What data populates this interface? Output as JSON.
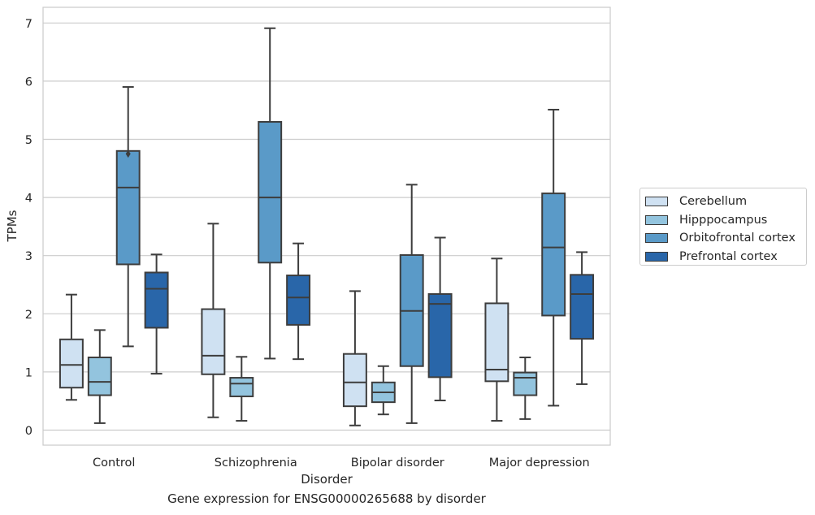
{
  "chart_data": {
    "type": "box",
    "title": "",
    "caption": "Gene expression for ENSG00000265688 by disorder",
    "xlabel": "Disorder",
    "ylabel": "TPMs",
    "ylim": [
      -0.25,
      7.3
    ],
    "yticks": [
      0,
      1,
      2,
      3,
      4,
      5,
      6,
      7
    ],
    "grid": true,
    "legend_position": "right",
    "categories": [
      "Control",
      "Schizophrenia",
      "Bipolar disorder",
      "Major depression"
    ],
    "series": [
      {
        "name": "Cerebellum",
        "color": "#cfe1f2",
        "boxes": [
          {
            "whislo": 0.52,
            "q1": 0.73,
            "med": 1.12,
            "q3": 1.56,
            "whishi": 2.33,
            "fliers": []
          },
          {
            "whislo": 0.22,
            "q1": 0.96,
            "med": 1.28,
            "q3": 2.08,
            "whishi": 3.55,
            "fliers": []
          },
          {
            "whislo": 0.08,
            "q1": 0.41,
            "med": 0.82,
            "q3": 1.31,
            "whishi": 2.39,
            "fliers": []
          },
          {
            "whislo": 0.16,
            "q1": 0.84,
            "med": 1.04,
            "q3": 2.18,
            "whishi": 2.95,
            "fliers": []
          }
        ]
      },
      {
        "name": "Hipppocampus",
        "color": "#93c4de",
        "boxes": [
          {
            "whislo": 0.12,
            "q1": 0.6,
            "med": 0.83,
            "q3": 1.25,
            "whishi": 1.72,
            "fliers": []
          },
          {
            "whislo": 0.16,
            "q1": 0.58,
            "med": 0.8,
            "q3": 0.9,
            "whishi": 1.26,
            "fliers": []
          },
          {
            "whislo": 0.27,
            "q1": 0.48,
            "med": 0.65,
            "q3": 0.82,
            "whishi": 1.1,
            "fliers": []
          },
          {
            "whislo": 0.19,
            "q1": 0.6,
            "med": 0.9,
            "q3": 0.99,
            "whishi": 1.25,
            "fliers": []
          }
        ]
      },
      {
        "name": "Orbitofrontal cortex",
        "color": "#5a9ac8",
        "boxes": [
          {
            "whislo": 1.44,
            "q1": 2.85,
            "med": 4.17,
            "q3": 4.8,
            "whishi": 5.9,
            "fliers": [
              4.75
            ]
          },
          {
            "whislo": 1.23,
            "q1": 2.88,
            "med": 4.0,
            "q3": 5.3,
            "whishi": 6.91,
            "fliers": []
          },
          {
            "whislo": 0.12,
            "q1": 1.1,
            "med": 2.05,
            "q3": 3.01,
            "whishi": 4.22,
            "fliers": []
          },
          {
            "whislo": 0.42,
            "q1": 1.97,
            "med": 3.14,
            "q3": 4.07,
            "whishi": 5.51,
            "fliers": []
          }
        ]
      },
      {
        "name": "Prefrontal cortex",
        "color": "#2966a9",
        "boxes": [
          {
            "whislo": 0.97,
            "q1": 1.76,
            "med": 2.43,
            "q3": 2.71,
            "whishi": 3.02,
            "fliers": []
          },
          {
            "whislo": 1.22,
            "q1": 1.81,
            "med": 2.28,
            "q3": 2.66,
            "whishi": 3.21,
            "fliers": []
          },
          {
            "whislo": 0.51,
            "q1": 0.91,
            "med": 2.17,
            "q3": 2.34,
            "whishi": 3.31,
            "fliers": []
          },
          {
            "whislo": 0.79,
            "q1": 1.57,
            "med": 2.34,
            "q3": 2.67,
            "whishi": 3.06,
            "fliers": []
          }
        ]
      }
    ]
  }
}
